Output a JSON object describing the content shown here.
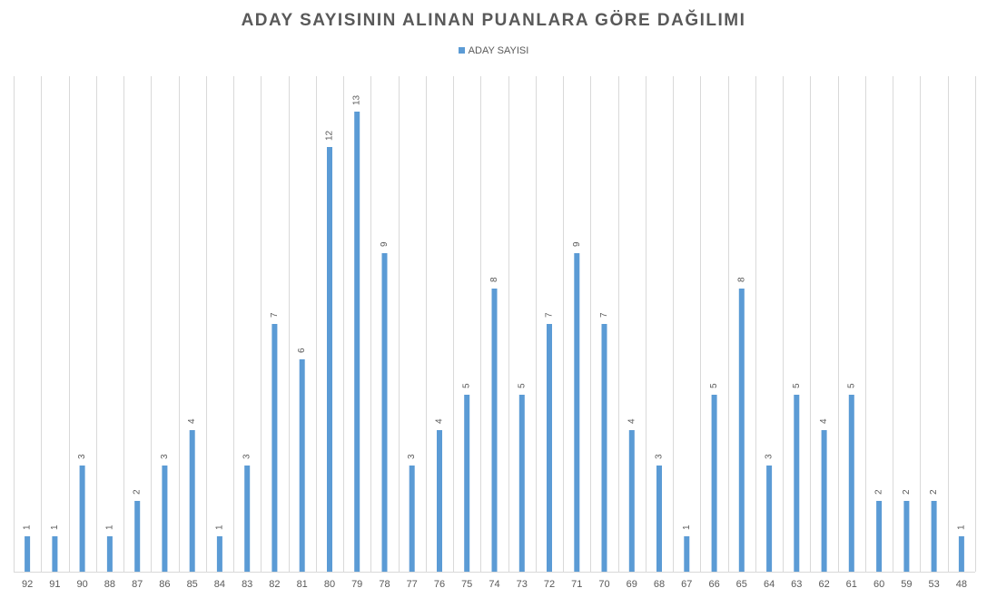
{
  "chart_data": {
    "type": "bar",
    "title": "ADAY SAYISININ ALINAN PUANLARA GÖRE DAĞILIMI",
    "xlabel": "",
    "ylabel": "",
    "legend_position": "top",
    "grid": "vertical",
    "ylim": [
      0,
      14
    ],
    "categories": [
      "92",
      "91",
      "90",
      "88",
      "87",
      "86",
      "85",
      "84",
      "83",
      "82",
      "81",
      "80",
      "79",
      "78",
      "77",
      "76",
      "75",
      "74",
      "73",
      "72",
      "71",
      "70",
      "69",
      "68",
      "67",
      "66",
      "65",
      "64",
      "63",
      "62",
      "61",
      "60",
      "59",
      "53",
      "48"
    ],
    "series": [
      {
        "name": "ADAY SAYISI",
        "color": "#5b9bd5",
        "values": [
          1,
          1,
          3,
          1,
          2,
          3,
          4,
          1,
          3,
          7,
          6,
          12,
          13,
          9,
          3,
          4,
          5,
          8,
          5,
          7,
          9,
          7,
          4,
          3,
          1,
          5,
          8,
          3,
          5,
          4,
          5,
          2,
          2,
          2,
          1
        ]
      }
    ]
  }
}
